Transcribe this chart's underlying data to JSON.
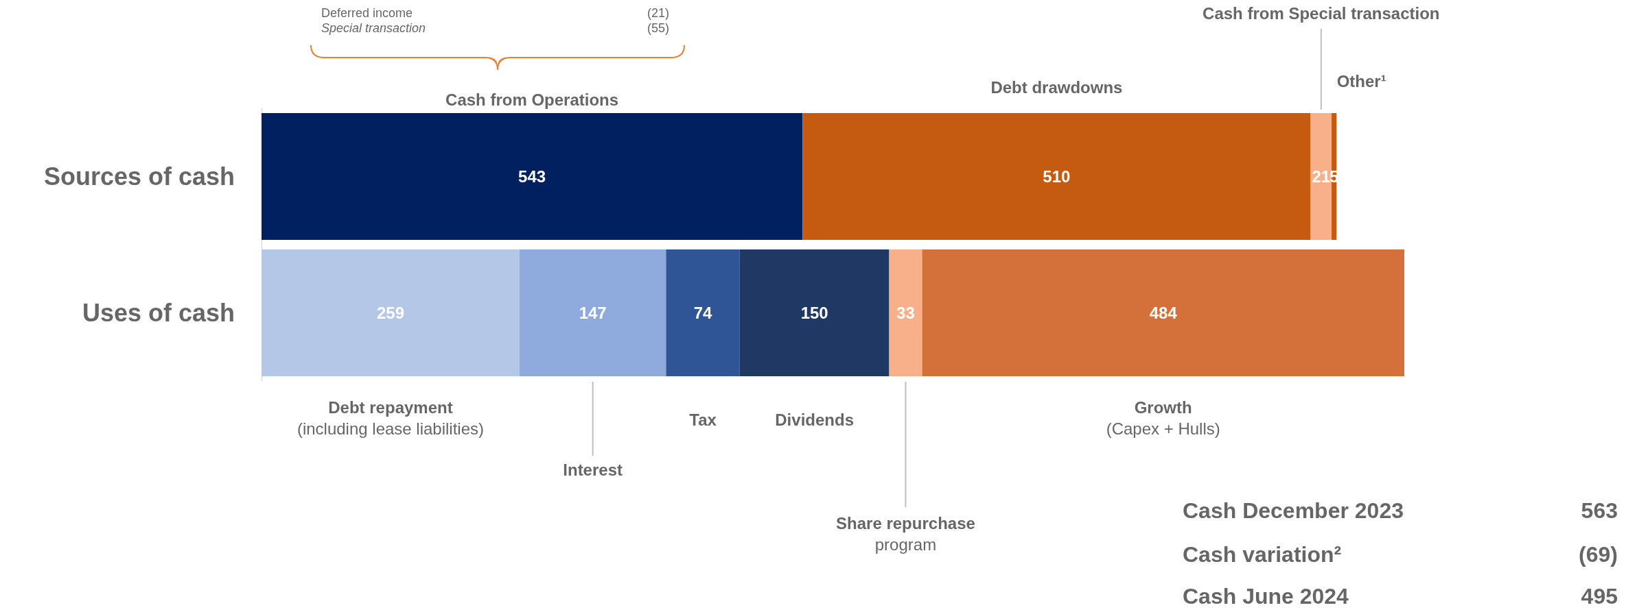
{
  "chart_data": {
    "type": "bar",
    "orientation": "horizontal",
    "stacked": true,
    "data_labels": true,
    "legend": false,
    "tick_labels": "y",
    "categories": [
      "Sources of cash",
      "Uses of cash"
    ],
    "series": [
      {
        "name": "Cash from Operations",
        "color": "#002060",
        "values": [
          543,
          null
        ]
      },
      {
        "name": "Debt drawdowns",
        "color": "#c55a11",
        "values": [
          510,
          null
        ]
      },
      {
        "name": "Cash from Special transaction",
        "color": "#f8b08a",
        "values": [
          21,
          null
        ]
      },
      {
        "name": "Other¹",
        "color": "#c55a11",
        "values": [
          5,
          null
        ]
      },
      {
        "name": "Debt repayment\n(including lease liabilities)",
        "color": "#b4c7e7",
        "values": [
          null,
          259
        ]
      },
      {
        "name": "Interest",
        "color": "#8faadc",
        "values": [
          null,
          147
        ]
      },
      {
        "name": "Tax",
        "color": "#2f5597",
        "values": [
          null,
          74
        ]
      },
      {
        "name": "Dividends",
        "color": "#203864",
        "values": [
          null,
          150
        ]
      },
      {
        "name": "Share repurchase\nprogram",
        "color": "#f8b08a",
        "values": [
          null,
          33
        ]
      },
      {
        "name": "Growth\n(Capex + Hulls)",
        "color": "#d4713a",
        "values": [
          null,
          484
        ]
      }
    ],
    "annotations": [
      "Deferred income",
      "(21)",
      "Special transaction",
      "(55)",
      "Cash December 2023",
      "563",
      "Cash variation²",
      "(69)",
      "Cash June 2024",
      "495"
    ]
  }
}
